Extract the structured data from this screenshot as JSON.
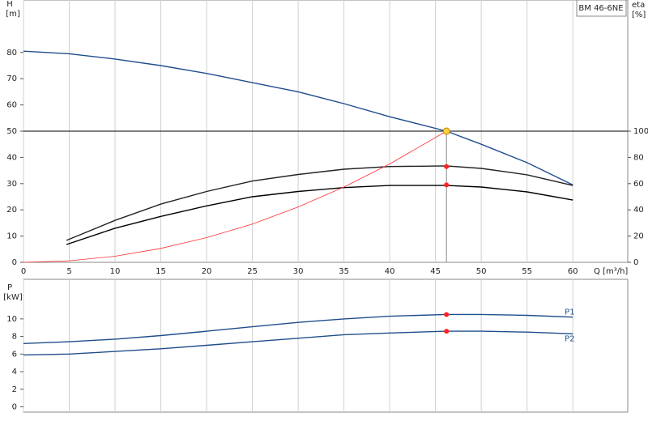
{
  "chart_data": [
    {
      "type": "line",
      "model": "BM 46-6NE",
      "y_label": "H",
      "y_unit": "[m]",
      "y2_label": "eta",
      "y2_unit": "[%]",
      "x_label": "Q [m³/h]",
      "xlim": [
        0,
        66
      ],
      "xticks": [
        0,
        5,
        10,
        15,
        20,
        25,
        30,
        35,
        40,
        45,
        50,
        55,
        60
      ],
      "ylim": [
        0,
        100
      ],
      "yticks": [
        0,
        10,
        20,
        30,
        40,
        50,
        60,
        70,
        80
      ],
      "y2lim": [
        0,
        200
      ],
      "y2ticks": [
        0,
        20,
        40,
        60,
        80,
        100
      ],
      "grid": true,
      "series": [
        {
          "color": "#1f4e8c",
          "x": [
            0,
            5,
            10,
            15,
            20,
            25,
            30,
            35,
            40,
            46.2,
            50,
            55,
            60
          ],
          "values": [
            80.5,
            79.5,
            77.5,
            75,
            72,
            68.5,
            65,
            60.5,
            55.5,
            50,
            45,
            38,
            29.5
          ]
        },
        {
          "color": "#222222",
          "axis": "y2",
          "x": [
            4.7,
            10,
            15,
            20,
            25,
            30,
            35,
            40,
            46.2,
            50,
            55,
            60
          ],
          "values": [
            16.7,
            32,
            44.4,
            54,
            62,
            67,
            71,
            73,
            73.5,
            71.6,
            66.7,
            58.6
          ]
        },
        {
          "color": "#000000",
          "axis": "y2",
          "x": [
            4.7,
            10,
            15,
            20,
            25,
            30,
            35,
            40,
            46.2,
            50,
            55,
            60
          ],
          "values": [
            13.6,
            26,
            35,
            43,
            50,
            54,
            57,
            58.6,
            58.6,
            57.4,
            53.7,
            47.5
          ]
        },
        {
          "color": "#ff3030",
          "x": [
            0,
            5,
            10,
            15,
            20,
            25,
            30,
            35,
            40,
            46.2
          ],
          "values": [
            0,
            0.6,
            2.3,
            5.3,
            9.4,
            14.6,
            21.1,
            28.7,
            37.5,
            50
          ]
        }
      ],
      "duty_point": {
        "q": 46.2,
        "h": 50,
        "eta": [
          73,
          59
        ]
      }
    },
    {
      "type": "line",
      "y_label": "P",
      "y_unit": "[kW]",
      "xlim": [
        0,
        66
      ],
      "xticks": [
        0,
        5,
        10,
        15,
        20,
        25,
        30,
        35,
        40,
        45,
        50,
        55,
        60
      ],
      "ylim": [
        -0.6,
        14.5
      ],
      "yticks": [
        0,
        2,
        4,
        6,
        8,
        10
      ],
      "grid": true,
      "series": [
        {
          "name": "P1",
          "color": "#1f4e8c",
          "x": [
            0,
            5,
            10,
            15,
            20,
            25,
            30,
            35,
            40,
            46.2,
            50,
            55,
            60
          ],
          "values": [
            7.2,
            7.4,
            7.7,
            8.1,
            8.6,
            9.1,
            9.6,
            10,
            10.3,
            10.5,
            10.5,
            10.4,
            10.2
          ]
        },
        {
          "name": "P2",
          "color": "#1f4e8c",
          "x": [
            0,
            5,
            10,
            15,
            20,
            25,
            30,
            35,
            40,
            46.2,
            50,
            55,
            60
          ],
          "values": [
            5.9,
            6,
            6.3,
            6.6,
            7,
            7.4,
            7.8,
            8.2,
            8.4,
            8.6,
            8.6,
            8.5,
            8.3
          ]
        }
      ],
      "duty_point": {
        "q": 46.2,
        "p": [
          10.5,
          8.6
        ]
      }
    }
  ]
}
